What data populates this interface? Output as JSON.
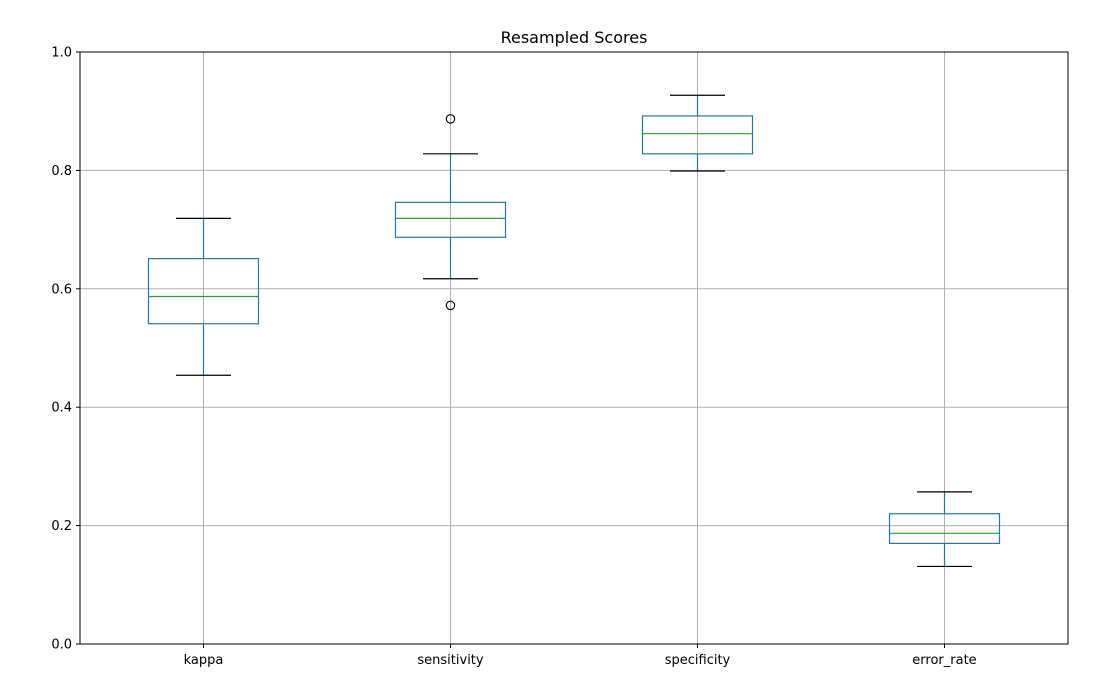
{
  "chart_data": {
    "type": "box",
    "title": "Resampled Scores",
    "xlabel": "",
    "ylabel": "",
    "ylim": [
      0.0,
      1.0
    ],
    "yticks": [
      0.0,
      0.2,
      0.4,
      0.6,
      0.8,
      1.0
    ],
    "ytick_labels": [
      "0.0",
      "0.2",
      "0.4",
      "0.6",
      "0.8",
      "1.0"
    ],
    "grid": true,
    "categories": [
      "kappa",
      "sensitivity",
      "specificity",
      "error_rate"
    ],
    "boxes": [
      {
        "category": "kappa",
        "whisker_low": 0.454,
        "q1": 0.541,
        "median": 0.587,
        "q3": 0.651,
        "whisker_high": 0.719,
        "outliers": []
      },
      {
        "category": "sensitivity",
        "whisker_low": 0.617,
        "q1": 0.687,
        "median": 0.719,
        "q3": 0.746,
        "whisker_high": 0.828,
        "outliers": [
          0.572,
          0.887
        ]
      },
      {
        "category": "specificity",
        "whisker_low": 0.799,
        "q1": 0.828,
        "median": 0.862,
        "q3": 0.892,
        "whisker_high": 0.927,
        "outliers": []
      },
      {
        "category": "error_rate",
        "whisker_low": 0.131,
        "q1": 0.17,
        "median": 0.187,
        "q3": 0.22,
        "whisker_high": 0.257,
        "outliers": []
      }
    ],
    "colors": {
      "box": "#1f77b4",
      "median": "#2ca02c",
      "cap": "#000000",
      "grid": "#b0b0b0",
      "outlier": "#000000"
    }
  }
}
